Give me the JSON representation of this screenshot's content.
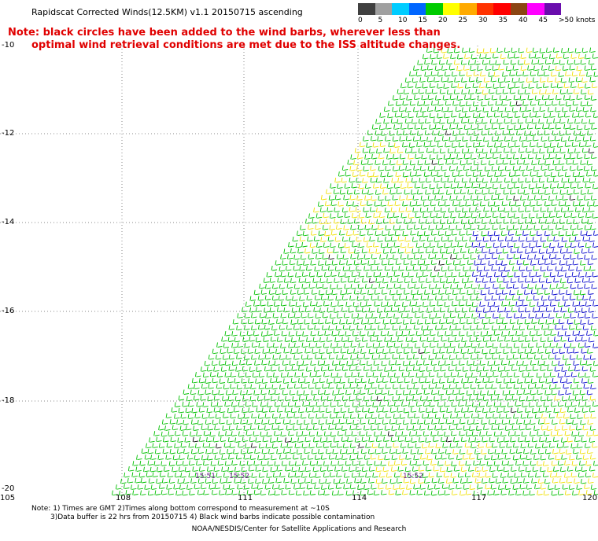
{
  "header": {
    "title": "Rapidscat Corrected Winds(12.5KM) v1.1 20150715 ascending",
    "note_line1": "Note: black circles have been added to the wind barbs, wherever less than",
    "note_line2": "optimal wind retrieval conditions are met due to the ISS altitude changes."
  },
  "scale": {
    "labels": [
      "0",
      "5",
      "10",
      "15",
      "20",
      "25",
      "30",
      "35",
      "40",
      "45",
      ">50 knots"
    ],
    "colors": [
      "#404040",
      "#a0a0a0",
      "#00ccff",
      "#0066ff",
      "#00cc00",
      "#ffff00",
      "#ffaa00",
      "#ff3300",
      "#ff0000",
      "#8b4513",
      "#ff00ff",
      "#6a0dad"
    ]
  },
  "map": {
    "lat_labels": [
      "-10",
      "-12",
      "-14",
      "-16",
      "-18",
      "-20"
    ],
    "lon_labels": [
      "105",
      "108",
      "111",
      "114",
      "117",
      "120"
    ],
    "time_labels": [
      "15:51",
      "15:52",
      "15:52"
    ],
    "colors": {
      "green": "#00c000",
      "yellow": "#f0e000",
      "blue": "#0000cc",
      "red": "#ff2000",
      "black": "#000000",
      "grid": "#888888"
    }
  },
  "footer": {
    "note1": "Note: 1) Times are GMT 2)Times along bottom correspond to measurement at ~10S",
    "note2": "3)Data buffer is 22 hrs from 20150715 4) Black wind barbs indicate possible contamination",
    "credit": "NOAA/NESDIS/Center for Satellite Applications and Research"
  }
}
